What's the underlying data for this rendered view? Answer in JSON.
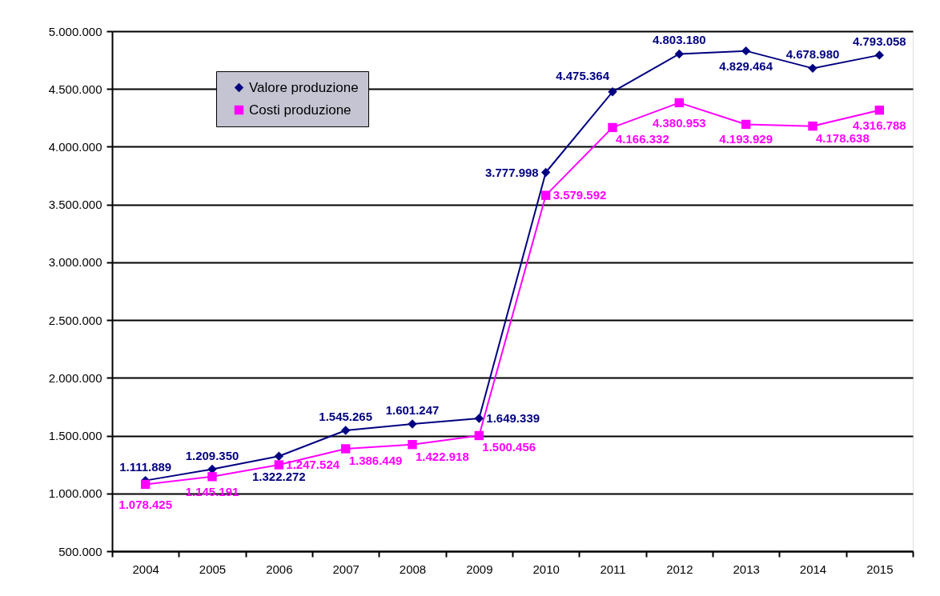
{
  "chart_data": {
    "type": "line",
    "categories": [
      "2004",
      "2005",
      "2006",
      "2007",
      "2008",
      "2009",
      "2010",
      "2011",
      "2012",
      "2013",
      "2014",
      "2015"
    ],
    "series": [
      {
        "name": "Valore produzione",
        "color": "#000080",
        "marker": "diamond",
        "values": [
          1111889,
          1209350,
          1322272,
          1545265,
          1601247,
          1649339,
          3777998,
          4475364,
          4803180,
          4829464,
          4678980,
          4793058
        ],
        "value_labels": [
          "1.111.889",
          "1.209.350",
          "1.322.272",
          "1.545.265",
          "1.601.247",
          "1.649.339",
          "3.777.998",
          "4.475.364",
          "4.803.180",
          "4.829.464",
          "4.678.980",
          "4.793.058"
        ]
      },
      {
        "name": "Costi produzione",
        "color": "#ff00ff",
        "marker": "square",
        "values": [
          1078425,
          1145191,
          1247524,
          1386449,
          1422918,
          1500456,
          3579592,
          4166332,
          4380953,
          4193929,
          4178638,
          4316788
        ],
        "value_labels": [
          "1.078.425",
          "1.145.191",
          "1.247.524",
          "1.386.449",
          "1.422.918",
          "1.500.456",
          "3.579.592",
          "4.166.332",
          "4.380.953",
          "4.193.929",
          "4.178.638",
          "4.316.788"
        ]
      }
    ],
    "ylim": [
      500000,
      5000000
    ],
    "yticks": [
      {
        "value": 500000,
        "label": "500.000"
      },
      {
        "value": 1000000,
        "label": "1.000.000"
      },
      {
        "value": 1500000,
        "label": "1.500.000"
      },
      {
        "value": 2000000,
        "label": "2.000.000"
      },
      {
        "value": 2500000,
        "label": "2.500.000"
      },
      {
        "value": 3000000,
        "label": "3.000.000"
      },
      {
        "value": 3500000,
        "label": "3.500.000"
      },
      {
        "value": 4000000,
        "label": "4.000.000"
      },
      {
        "value": 4500000,
        "label": "4.500.000"
      },
      {
        "value": 5000000,
        "label": "5.000.000"
      }
    ],
    "grid": "y",
    "legend": "top left",
    "line_style": "solid"
  }
}
